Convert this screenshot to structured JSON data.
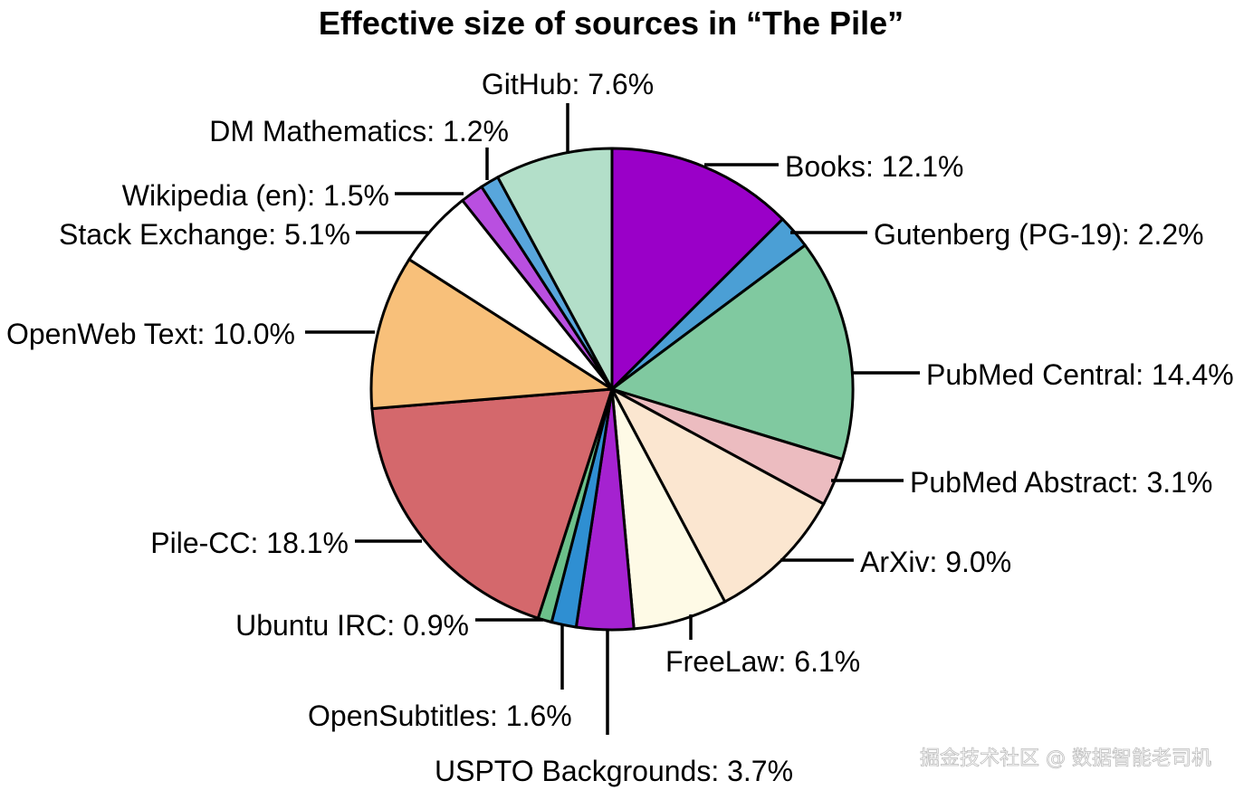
{
  "chart_data": {
    "type": "pie",
    "title": "Effective size of sources in “The Pile”",
    "start_angle_deg": 0,
    "direction": "clockwise",
    "slices": [
      {
        "name": "Books",
        "value": 12.1,
        "label": "Books: 12.1%",
        "color": "#9a00c8"
      },
      {
        "name": "Gutenberg (PG-19)",
        "value": 2.2,
        "label": "Gutenberg (PG-19): 2.2%",
        "color": "#4b9fd5"
      },
      {
        "name": "PubMed Central",
        "value": 14.4,
        "label": "PubMed Central: 14.4%",
        "color": "#80c9a0"
      },
      {
        "name": "PubMed Abstract",
        "value": 3.1,
        "label": "PubMed Abstract: 3.1%",
        "color": "#ecbcc0"
      },
      {
        "name": "ArXiv",
        "value": 9.0,
        "label": "ArXiv: 9.0%",
        "color": "#fbe6d0"
      },
      {
        "name": "FreeLaw",
        "value": 6.1,
        "label": "FreeLaw: 6.1%",
        "color": "#fefae6"
      },
      {
        "name": "USPTO Backgrounds",
        "value": 3.7,
        "label": "USPTO Backgrounds: 3.7%",
        "color": "#a522d0"
      },
      {
        "name": "OpenSubtitles",
        "value": 1.6,
        "label": "OpenSubtitles: 1.6%",
        "color": "#2f8fd2"
      },
      {
        "name": "Ubuntu IRC",
        "value": 0.9,
        "label": "Ubuntu IRC: 0.9%",
        "color": "#6cc08a"
      },
      {
        "name": "Pile-CC",
        "value": 18.1,
        "label": "Pile-CC: 18.1%",
        "color": "#d4686c"
      },
      {
        "name": "OpenWeb Text",
        "value": 10.0,
        "label": "OpenWeb Text: 10.0%",
        "color": "#f8c07a"
      },
      {
        "name": "Stack Exchange",
        "value": 5.1,
        "label": "Stack Exchange: 5.1%",
        "color": "#ffffff"
      },
      {
        "name": "Wikipedia (en)",
        "value": 1.5,
        "label": "Wikipedia (en): 1.5%",
        "color": "#b94fe0"
      },
      {
        "name": "DM Mathematics",
        "value": 1.2,
        "label": "DM Mathematics: 1.2%",
        "color": "#58a6dc"
      },
      {
        "name": "GitHub",
        "value": 7.6,
        "label": "GitHub: 7.6%",
        "color": "#b3dfc9"
      }
    ]
  },
  "watermark": "掘金技术社区 @ 数据智能老司机"
}
